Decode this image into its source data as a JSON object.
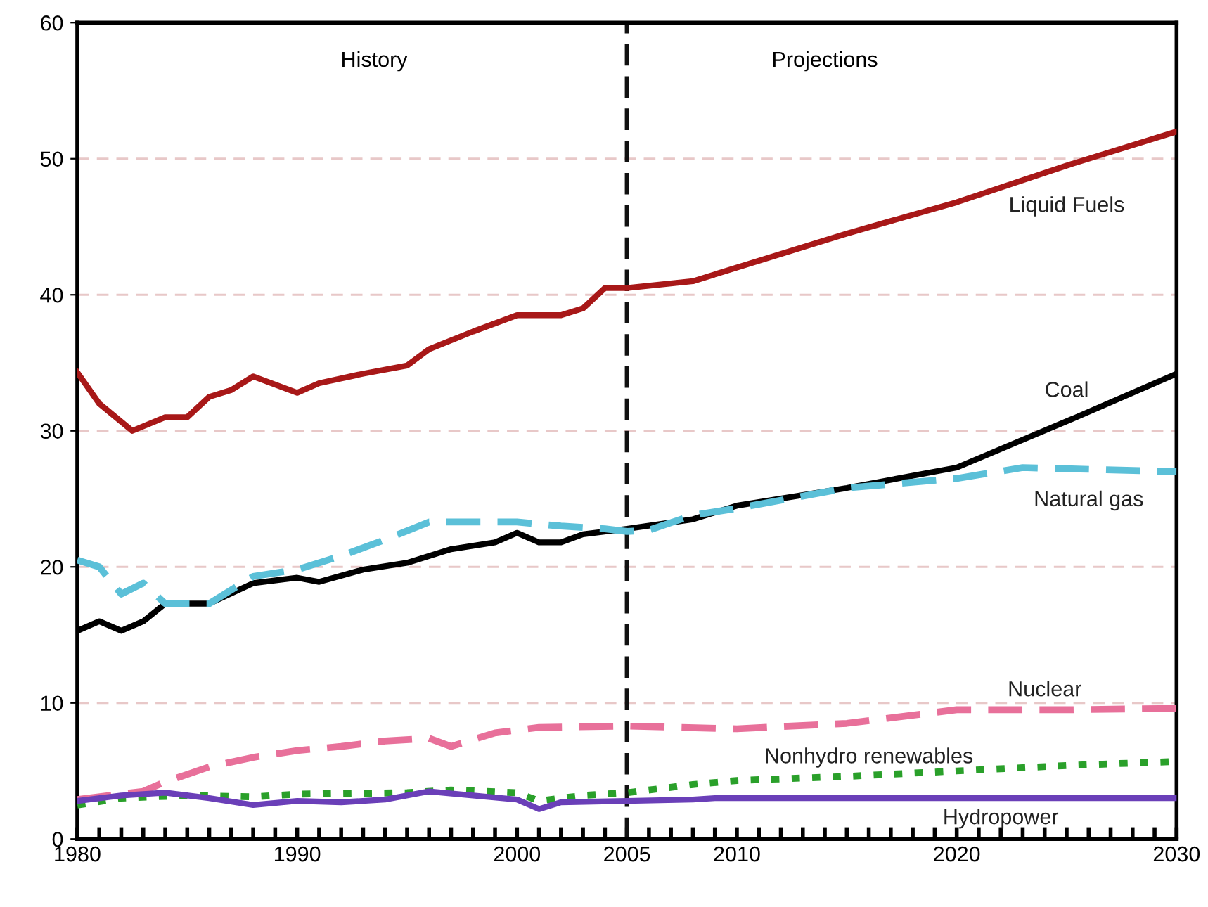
{
  "chart_data": {
    "type": "line",
    "xlim": [
      1980,
      2030
    ],
    "xticks": [
      1980,
      1990,
      2000,
      2005,
      2010,
      2020,
      2030
    ],
    "ylim": [
      0,
      60
    ],
    "yticks": [
      0,
      10,
      20,
      30,
      40,
      50,
      60
    ],
    "grid": "y",
    "legend": false,
    "annotations": [
      "History",
      "Projections"
    ],
    "ref_lines": [
      {
        "axis": "x",
        "value": 2005,
        "color": "#111111",
        "line_style": "dashed"
      }
    ],
    "series": [
      {
        "name": "Liquid Fuels",
        "color": "#a81818",
        "line_style": "solid",
        "x": [
          1980,
          1981,
          1982.5,
          1984,
          1985,
          1986,
          1987,
          1988,
          1990,
          1991,
          1993,
          1995,
          1996,
          1998,
          2000,
          2002,
          2003,
          2004,
          2005,
          2008,
          2010,
          2015,
          2020,
          2025,
          2030
        ],
        "values": [
          34.3,
          32,
          30,
          31,
          31,
          32.5,
          33,
          34,
          32.8,
          33.5,
          34.2,
          34.8,
          36,
          37.3,
          38.5,
          38.5,
          39,
          40.5,
          40.5,
          41,
          42,
          44.5,
          46.8,
          49.5,
          52
        ]
      },
      {
        "name": "Coal",
        "color": "#000000",
        "line_style": "solid",
        "x": [
          1980,
          1981,
          1982,
          1983,
          1984,
          1986,
          1988,
          1990,
          1991,
          1993,
          1995,
          1997,
          1999,
          2000,
          2001,
          2002,
          2003,
          2005,
          2008,
          2010,
          2015,
          2020,
          2025,
          2030
        ],
        "values": [
          15.3,
          16,
          15.3,
          16,
          17.3,
          17.3,
          18.8,
          19.2,
          18.9,
          19.8,
          20.3,
          21.3,
          21.8,
          22.5,
          21.8,
          21.8,
          22.4,
          22.8,
          23.5,
          24.5,
          25.8,
          27.3,
          30.7,
          34.2
        ]
      },
      {
        "name": "Natural gas",
        "color": "#5bc0d8",
        "line_style": "dashed",
        "x": [
          1980,
          1981,
          1982,
          1983,
          1984,
          1986,
          1988,
          1990,
          1992,
          1994,
          1996,
          1998,
          2000,
          2002,
          2004,
          2005,
          2006,
          2008,
          2010,
          2015,
          2020,
          2023,
          2030
        ],
        "values": [
          20.5,
          20,
          18,
          18.8,
          17.3,
          17.3,
          19.3,
          19.8,
          20.8,
          22,
          23.3,
          23.3,
          23.3,
          23,
          22.8,
          22.6,
          22.7,
          23.8,
          24.3,
          25.8,
          26.5,
          27.3,
          27
        ]
      },
      {
        "name": "Nuclear",
        "color": "#e8709a",
        "line_style": "dashed",
        "x": [
          1980,
          1983,
          1984,
          1986,
          1988,
          1990,
          1992,
          1994,
          1996,
          1997,
          1999,
          2001,
          2005,
          2010,
          2015,
          2020,
          2025,
          2030
        ],
        "values": [
          2.9,
          3.5,
          4.2,
          5.3,
          6,
          6.5,
          6.8,
          7.2,
          7.4,
          6.8,
          7.8,
          8.2,
          8.3,
          8.1,
          8.5,
          9.5,
          9.5,
          9.6
        ]
      },
      {
        "name": "Nonhydro renewables",
        "color": "#2aa02a",
        "line_style": "dotted",
        "x": [
          1980,
          1982,
          1985,
          1988,
          1990,
          1995,
          1997,
          2000,
          2001,
          2003,
          2005,
          2008,
          2010,
          2015,
          2020,
          2025,
          2030
        ],
        "values": [
          2.5,
          3,
          3.2,
          3.1,
          3.3,
          3.4,
          3.6,
          3.4,
          2.8,
          3.2,
          3.4,
          4,
          4.3,
          4.6,
          5,
          5.4,
          5.7
        ]
      },
      {
        "name": "Hydropower",
        "color": "#6a3fb8",
        "line_style": "solid",
        "x": [
          1980,
          1982,
          1984,
          1986,
          1988,
          1990,
          1992,
          1994,
          1996,
          1998,
          2000,
          2001,
          2002,
          2005,
          2008,
          2009,
          2030
        ],
        "values": [
          2.8,
          3.2,
          3.4,
          3,
          2.5,
          2.8,
          2.7,
          2.9,
          3.5,
          3.2,
          2.9,
          2.2,
          2.7,
          2.8,
          2.9,
          3,
          3
        ]
      }
    ]
  }
}
